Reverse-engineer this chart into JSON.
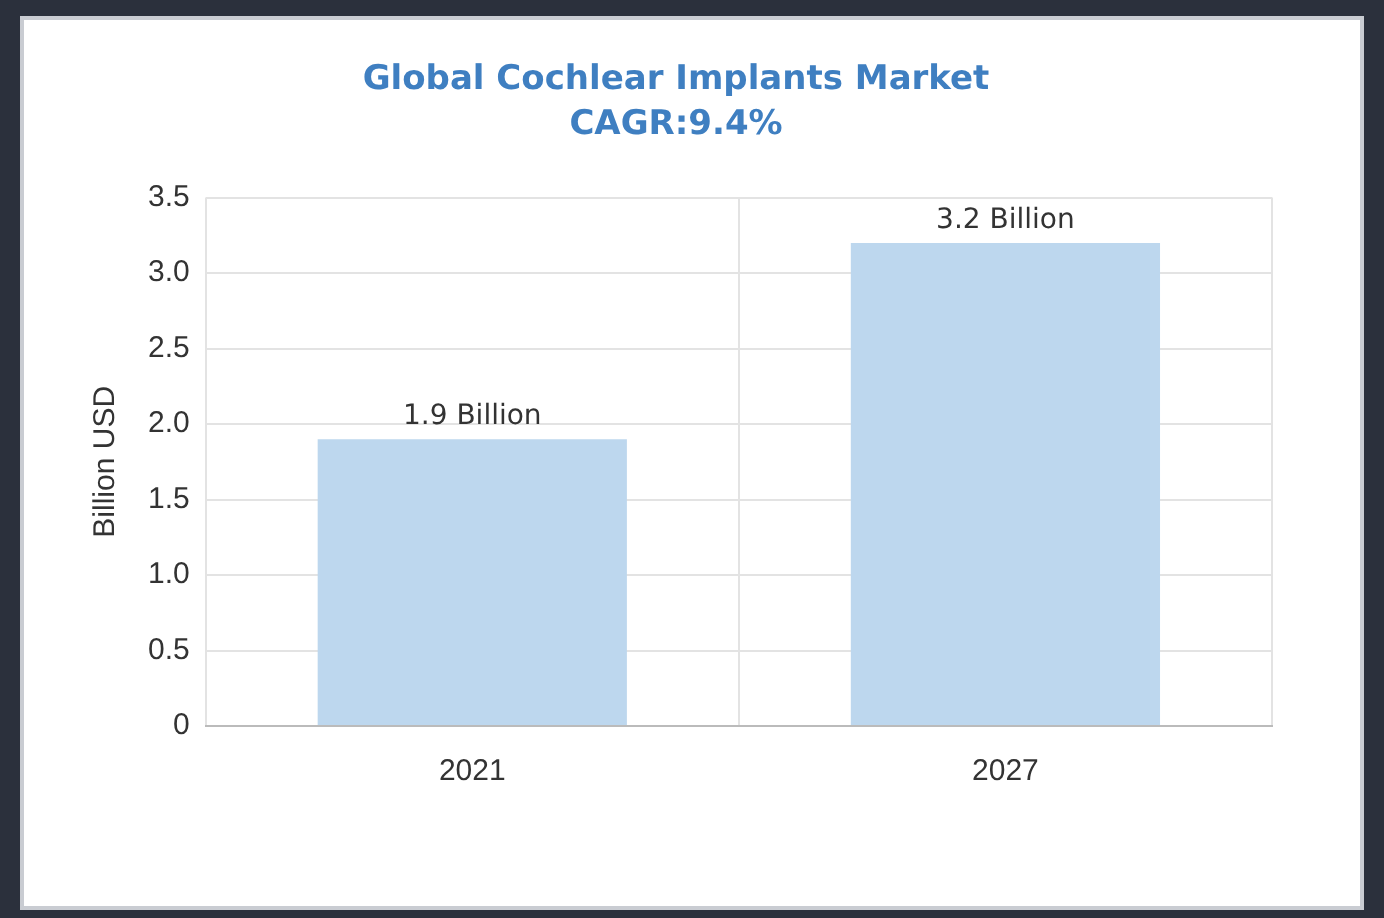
{
  "chart_data": {
    "type": "bar",
    "title": "Global Cochlear Implants Market",
    "subtitle": "CAGR:9.4%",
    "ylabel": "Billion USD",
    "categories": [
      "2021",
      "2027"
    ],
    "values": [
      1.9,
      3.2
    ],
    "color": "#bdd7ee",
    "value_labels": [
      "1.9 Billion",
      "3.2 Billion"
    ],
    "ylim": [
      0,
      3.5
    ],
    "yticks": [
      0,
      0.5,
      {
        "value": 1,
        "label": "1.0"
      },
      1.5,
      {
        "value": 2,
        "label": "2.0"
      },
      2.5,
      {
        "value": 3,
        "label": "3.0"
      },
      3.5
    ],
    "grid": true
  }
}
